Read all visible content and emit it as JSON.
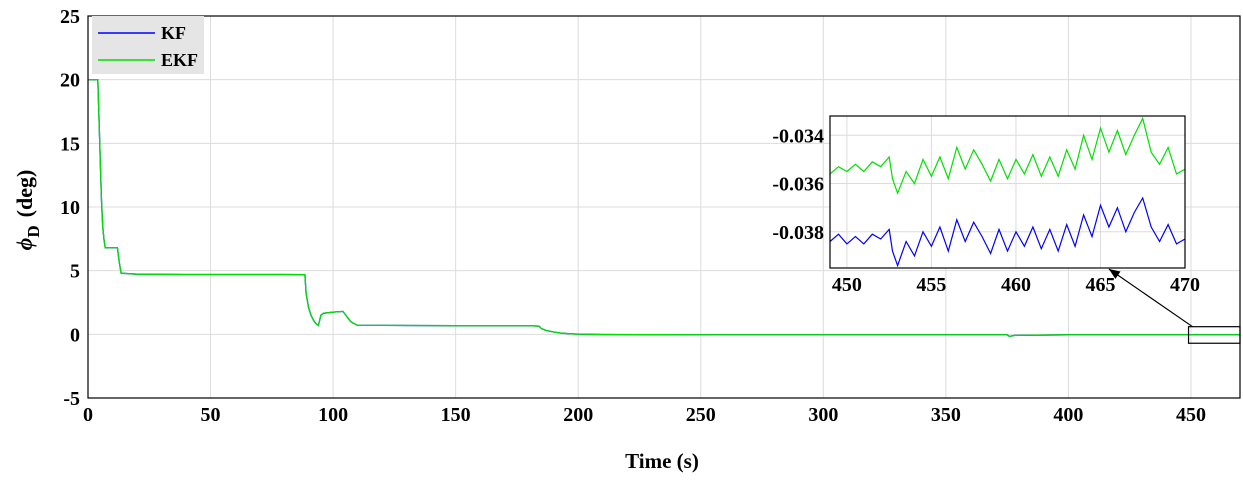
{
  "chart_data": [
    {
      "type": "line",
      "xlabel": "Time (s)",
      "ylabel": "ϕ",
      "ylabel_sub": "D",
      "ylabel_unit": "(deg)",
      "xlim": [
        0,
        470
      ],
      "ylim": [
        -5,
        25
      ],
      "xticks": [
        0,
        50,
        100,
        150,
        200,
        250,
        300,
        350,
        400,
        450
      ],
      "yticks": [
        -5,
        0,
        5,
        10,
        15,
        20,
        25
      ],
      "grid": true,
      "legend_position": "top-left",
      "series": [
        {
          "name": "KF",
          "color": "#0000ff",
          "x": [
            0,
            4,
            4.5,
            5,
            5.5,
            6,
            6.5,
            7,
            8,
            12,
            12.8,
            13.5,
            20,
            40,
            60,
            80,
            88.5,
            89,
            90,
            91,
            92,
            93,
            94,
            95,
            96,
            100,
            104,
            105,
            106,
            107,
            108,
            109,
            110,
            120,
            150,
            180,
            184,
            185,
            187,
            190,
            193,
            196,
            200,
            210,
            230,
            260,
            300,
            350,
            375,
            376,
            378,
            400,
            430,
            450,
            470
          ],
          "y": [
            20,
            20,
            17,
            13.5,
            10.5,
            8.5,
            7.5,
            6.8,
            6.8,
            6.8,
            5.6,
            4.8,
            4.72,
            4.7,
            4.7,
            4.7,
            4.68,
            3.2,
            2.1,
            1.5,
            1.1,
            0.85,
            0.7,
            1.5,
            1.65,
            1.75,
            1.8,
            1.55,
            1.3,
            1.05,
            0.9,
            0.8,
            0.7,
            0.7,
            0.68,
            0.68,
            0.65,
            0.45,
            0.3,
            0.18,
            0.1,
            0.05,
            0.02,
            -0.01,
            -0.03,
            -0.04,
            -0.04,
            -0.04,
            -0.04,
            -0.16,
            -0.08,
            -0.04,
            -0.04,
            -0.038,
            -0.038
          ]
        },
        {
          "name": "EKF",
          "color": "#00e000",
          "x": [
            0,
            4,
            4.5,
            5,
            5.5,
            6,
            6.5,
            7,
            8,
            12,
            12.8,
            13.5,
            20,
            40,
            60,
            80,
            88.5,
            89,
            90,
            91,
            92,
            93,
            94,
            95,
            96,
            100,
            104,
            105,
            106,
            107,
            108,
            109,
            110,
            120,
            150,
            180,
            184,
            185,
            187,
            190,
            193,
            196,
            200,
            210,
            230,
            260,
            300,
            350,
            375,
            376,
            378,
            400,
            430,
            450,
            470
          ],
          "y": [
            20,
            20,
            17,
            13.5,
            10.5,
            8.5,
            7.5,
            6.8,
            6.8,
            6.8,
            5.6,
            4.8,
            4.72,
            4.7,
            4.7,
            4.7,
            4.68,
            3.2,
            2.1,
            1.5,
            1.1,
            0.85,
            0.7,
            1.5,
            1.65,
            1.75,
            1.8,
            1.55,
            1.3,
            1.05,
            0.9,
            0.8,
            0.7,
            0.7,
            0.68,
            0.68,
            0.65,
            0.45,
            0.3,
            0.18,
            0.1,
            0.05,
            0.02,
            -0.01,
            -0.03,
            -0.04,
            -0.04,
            -0.04,
            -0.04,
            -0.16,
            -0.08,
            -0.04,
            -0.04,
            -0.035,
            -0.035
          ]
        }
      ]
    },
    {
      "type": "line",
      "role": "inset",
      "xlim": [
        449,
        470
      ],
      "ylim": [
        -0.0395,
        -0.0332
      ],
      "xticks": [
        450,
        455,
        460,
        465,
        470
      ],
      "yticks": [
        -0.038,
        -0.036,
        -0.034
      ],
      "ytick_labels": [
        "-0.038",
        "-0.036",
        "-0.034"
      ],
      "grid": true,
      "zoom_box_x": [
        449,
        470
      ],
      "zoom_box_y": [
        -0.7,
        0.6
      ],
      "series": [
        {
          "name": "KF",
          "color": "#0000ff",
          "x": [
            449,
            449.5,
            450,
            450.5,
            451,
            451.5,
            452,
            452.5,
            452.7,
            453,
            453.5,
            454,
            454.5,
            455,
            455.5,
            456,
            456.5,
            457,
            457.5,
            458,
            458.5,
            459,
            459.5,
            460,
            460.5,
            461,
            461.5,
            462,
            462.5,
            463,
            463.5,
            464,
            464.5,
            465,
            465.5,
            466,
            466.5,
            467,
            467.5,
            468,
            468.5,
            469,
            469.5,
            470
          ],
          "y": [
            -0.0384,
            -0.0381,
            -0.0385,
            -0.0382,
            -0.0385,
            -0.0381,
            -0.0383,
            -0.0379,
            -0.0388,
            -0.0394,
            -0.0384,
            -0.039,
            -0.038,
            -0.0386,
            -0.0378,
            -0.0388,
            -0.0375,
            -0.0384,
            -0.0376,
            -0.0382,
            -0.0389,
            -0.0379,
            -0.0388,
            -0.038,
            -0.0386,
            -0.0378,
            -0.0387,
            -0.0379,
            -0.0388,
            -0.0377,
            -0.0386,
            -0.0373,
            -0.0382,
            -0.0369,
            -0.0378,
            -0.037,
            -0.038,
            -0.0372,
            -0.0366,
            -0.0378,
            -0.0384,
            -0.0377,
            -0.0385,
            -0.0383
          ]
        },
        {
          "name": "EKF",
          "color": "#00e000",
          "x": [
            449,
            449.5,
            450,
            450.5,
            451,
            451.5,
            452,
            452.5,
            452.7,
            453,
            453.5,
            454,
            454.5,
            455,
            455.5,
            456,
            456.5,
            457,
            457.5,
            458,
            458.5,
            459,
            459.5,
            460,
            460.5,
            461,
            461.5,
            462,
            462.5,
            463,
            463.5,
            464,
            464.5,
            465,
            465.5,
            466,
            466.5,
            467,
            467.5,
            468,
            468.5,
            469,
            469.5,
            470
          ],
          "y": [
            -0.0356,
            -0.0353,
            -0.0355,
            -0.0352,
            -0.0355,
            -0.0351,
            -0.0353,
            -0.0349,
            -0.0358,
            -0.0364,
            -0.0355,
            -0.036,
            -0.035,
            -0.0357,
            -0.0349,
            -0.0358,
            -0.0345,
            -0.0354,
            -0.0346,
            -0.0352,
            -0.0359,
            -0.035,
            -0.0358,
            -0.035,
            -0.0356,
            -0.0348,
            -0.0357,
            -0.0349,
            -0.0357,
            -0.0346,
            -0.0354,
            -0.034,
            -0.035,
            -0.0337,
            -0.0347,
            -0.0338,
            -0.0348,
            -0.034,
            -0.0333,
            -0.0347,
            -0.0352,
            -0.0345,
            -0.0356,
            -0.0354
          ]
        }
      ]
    }
  ]
}
